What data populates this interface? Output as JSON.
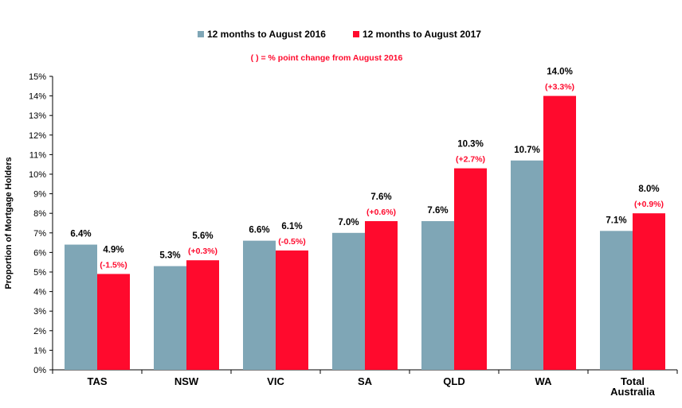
{
  "chart_data": {
    "type": "bar",
    "categories": [
      "TAS",
      "NSW",
      "VIC",
      "SA",
      "QLD",
      "WA",
      "Total Australia"
    ],
    "series": [
      {
        "name": "12 months to August 2016",
        "values": [
          6.4,
          5.3,
          6.6,
          7.0,
          7.6,
          10.7,
          7.1
        ]
      },
      {
        "name": "12 months to August 2017",
        "values": [
          4.9,
          5.6,
          6.1,
          7.6,
          10.3,
          14.0,
          8.0
        ]
      }
    ],
    "value_labels": [
      [
        "6.4%",
        "5.3%",
        "6.6%",
        "7.0%",
        "7.6%",
        "10.7%",
        "7.1%"
      ],
      [
        "4.9%",
        "5.6%",
        "6.1%",
        "7.6%",
        "10.3%",
        "14.0%",
        "8.0%"
      ]
    ],
    "change_labels": [
      "(-1.5%)",
      "(+0.3%)",
      "(-0.5%)",
      "(+0.6%)",
      "(+2.7%)",
      "(+3.3%)",
      "(+0.9%)"
    ],
    "annotation": "( ) = % point change from August 2016",
    "ylabel": "Proportion of Mortgage Holders",
    "xlabel": "",
    "ylim": [
      0,
      15
    ],
    "yticks": [
      0,
      1,
      2,
      3,
      4,
      5,
      6,
      7,
      8,
      9,
      10,
      11,
      12,
      13,
      14,
      15
    ],
    "ytick_labels": [
      "0%",
      "1%",
      "2%",
      "3%",
      "4%",
      "5%",
      "6%",
      "7%",
      "8%",
      "9%",
      "10%",
      "11%",
      "12%",
      "13%",
      "14%",
      "15%"
    ],
    "legend_position": "top-center",
    "grid": false,
    "colors": {
      "series1": "#7fa6b6",
      "series2": "#ff0a2d",
      "change_text": "#ff0a2d",
      "label_text": "#000000"
    }
  }
}
